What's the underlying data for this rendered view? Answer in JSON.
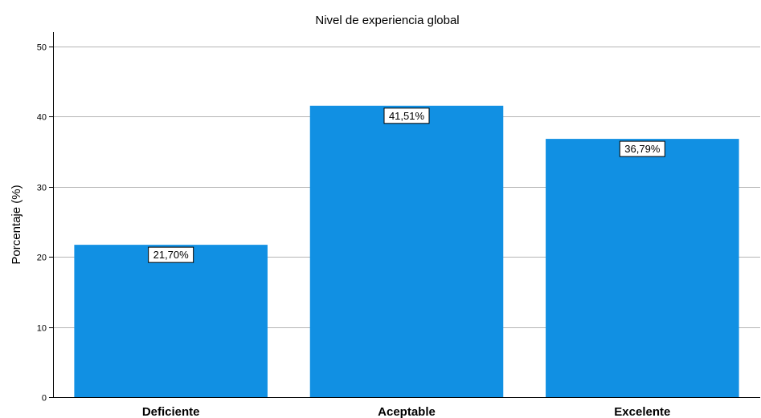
{
  "chart_data": {
    "type": "bar",
    "title": "Nivel de experiencia global",
    "ylabel": "Porcentaje (%)",
    "xlabel": "",
    "categories": [
      "Deficiente",
      "Aceptable",
      "Excelente"
    ],
    "values": [
      21.7,
      41.51,
      36.79
    ],
    "data_labels": [
      "21,70%",
      "41,51%",
      "36,79%"
    ],
    "yticks": [
      0,
      10,
      20,
      30,
      40,
      50
    ],
    "ytick_labels": [
      "0",
      "10",
      "20",
      "30",
      "40",
      "50"
    ],
    "ylim": [
      0,
      52
    ],
    "grid": true,
    "bar_color": "#1190E3"
  }
}
